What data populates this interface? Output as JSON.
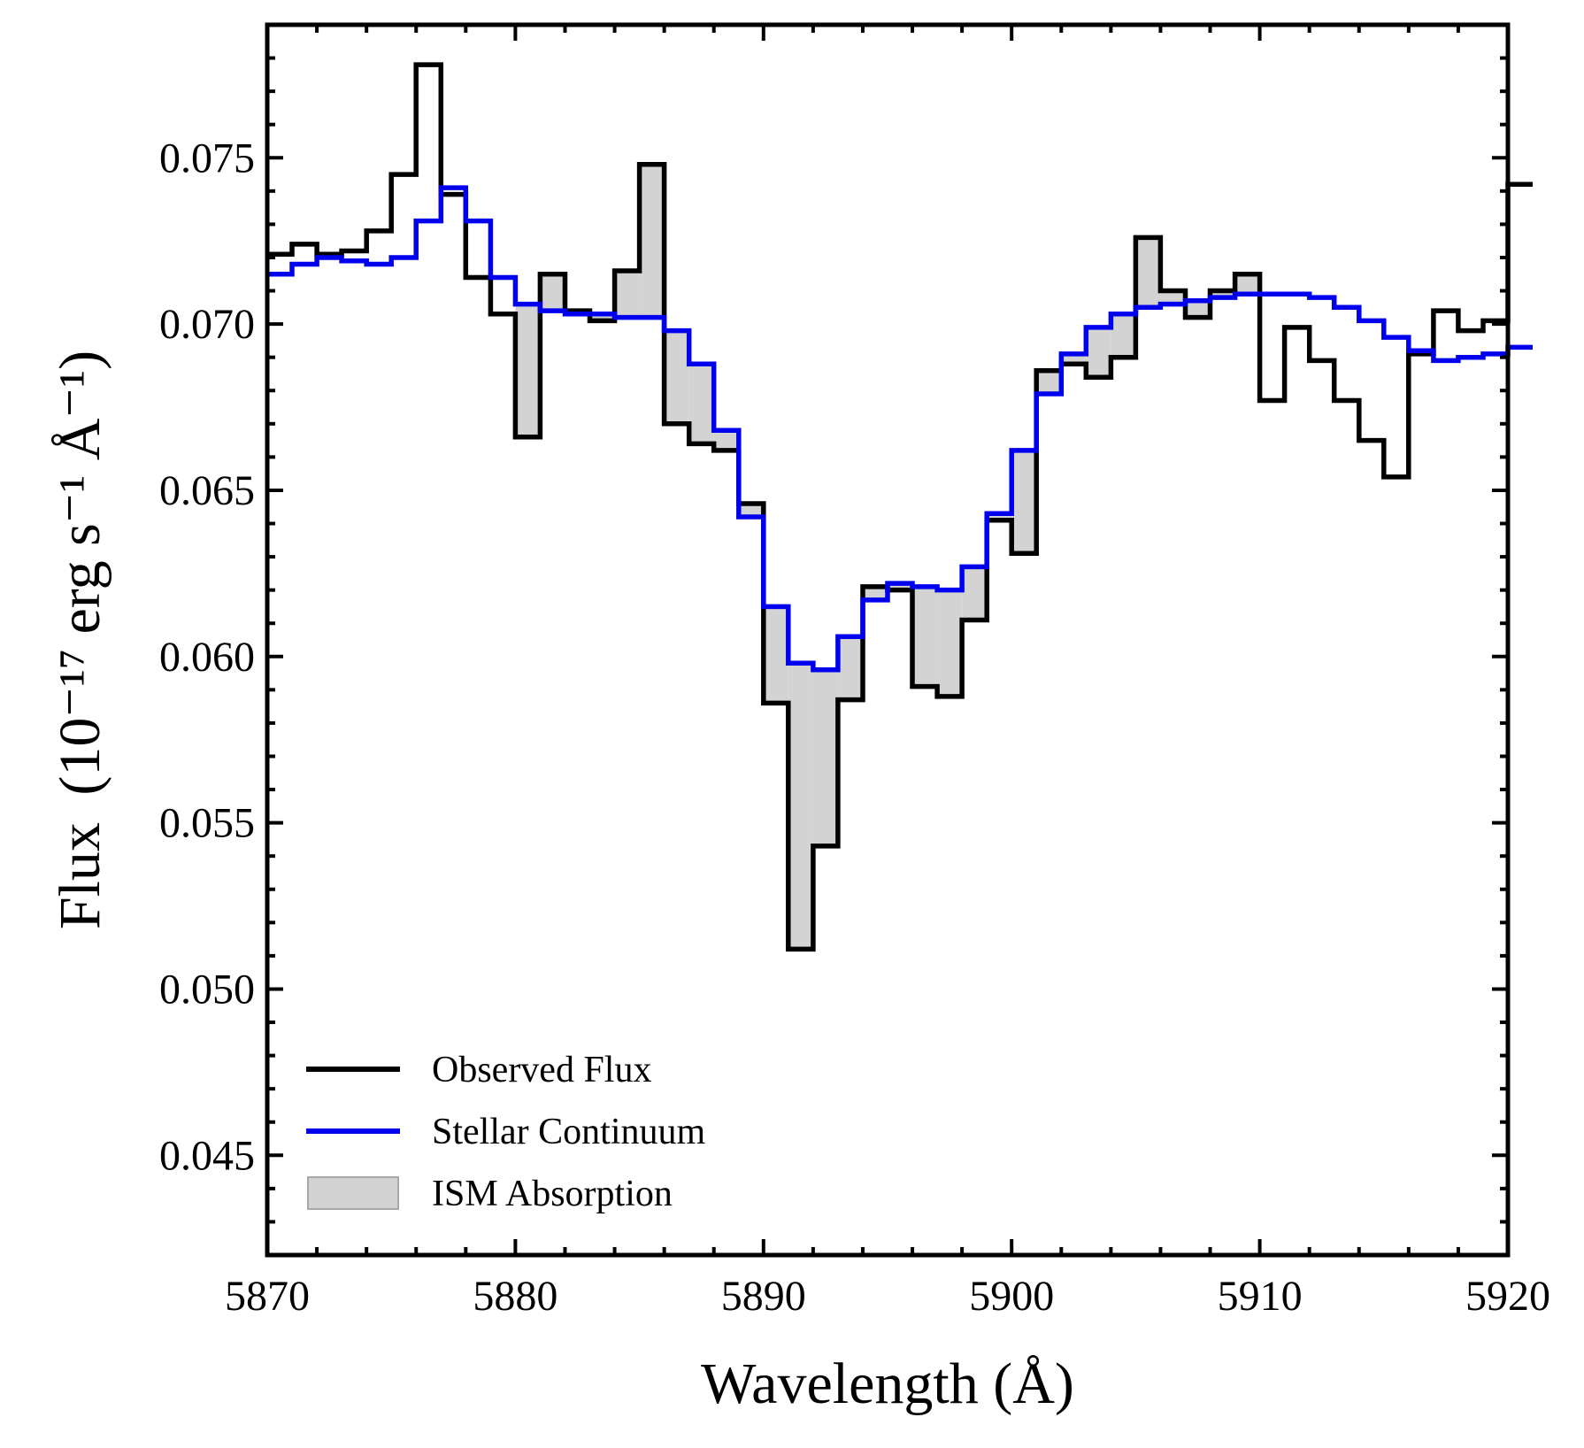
{
  "chart_data": {
    "type": "line",
    "title": "",
    "xlabel": "Wavelength (Å)",
    "ylabel_main": "Flux",
    "ylabel_units": "(10⁻¹⁷ erg s⁻¹ Å⁻¹)",
    "xlim": [
      5870,
      5920
    ],
    "ylim": [
      0.042,
      0.079
    ],
    "xticks": [
      5870,
      5880,
      5890,
      5900,
      5910,
      5920
    ],
    "xtick_labels": [
      "5870",
      "5880",
      "5890",
      "5900",
      "5910",
      "5920"
    ],
    "yticks": [
      0.045,
      0.05,
      0.055,
      0.06,
      0.065,
      0.07,
      0.075
    ],
    "ytick_labels": [
      "0.045",
      "0.050",
      "0.055",
      "0.060",
      "0.065",
      "0.070",
      "0.075"
    ],
    "grid": false,
    "legend_position": "bottom-left",
    "step_start": 5870,
    "step_width": 1.0,
    "series": [
      {
        "name": "Observed Flux",
        "color": "#000000",
        "values": [
          0.0721,
          0.0724,
          0.0721,
          0.0722,
          0.0728,
          0.0745,
          0.0778,
          0.0739,
          0.0714,
          0.0703,
          0.0666,
          0.0715,
          0.0704,
          0.0701,
          0.0716,
          0.0748,
          0.067,
          0.0664,
          0.0662,
          0.0646,
          0.0586,
          0.0512,
          0.0543,
          0.0587,
          0.0621,
          0.062,
          0.0591,
          0.0588,
          0.0611,
          0.0641,
          0.0631,
          0.0686,
          0.0688,
          0.0684,
          0.069,
          0.0726,
          0.071,
          0.0702,
          0.071,
          0.0715,
          0.0677,
          0.0699,
          0.0689,
          0.0677,
          0.0665,
          0.0654,
          0.0691,
          0.0704,
          0.0698,
          0.0701,
          0.0742
        ]
      },
      {
        "name": "Stellar Continuum",
        "color": "#0000ee",
        "values": [
          0.0715,
          0.0718,
          0.072,
          0.0719,
          0.0718,
          0.072,
          0.0731,
          0.0741,
          0.0731,
          0.0714,
          0.0706,
          0.0704,
          0.0703,
          0.0703,
          0.0702,
          0.0702,
          0.0698,
          0.0688,
          0.0668,
          0.0642,
          0.0615,
          0.0598,
          0.0596,
          0.0606,
          0.0617,
          0.0622,
          0.0621,
          0.062,
          0.0627,
          0.0643,
          0.0662,
          0.0679,
          0.0691,
          0.0699,
          0.0703,
          0.0705,
          0.0706,
          0.0707,
          0.0708,
          0.0709,
          0.0709,
          0.0709,
          0.0708,
          0.0705,
          0.0701,
          0.0696,
          0.0692,
          0.0689,
          0.069,
          0.0691,
          0.0693
        ]
      }
    ],
    "fill": {
      "name": "ISM Absorption",
      "color": "#d3d3d3",
      "between": [
        "Observed Flux",
        "Stellar Continuum"
      ],
      "x_range": [
        5880,
        5910
      ]
    },
    "legend": [
      {
        "label": "Observed Flux",
        "kind": "line",
        "color": "#000000"
      },
      {
        "label": "Stellar Continuum",
        "kind": "line",
        "color": "#0000ee"
      },
      {
        "label": "ISM Absorption",
        "kind": "patch",
        "color": "#d3d3d3"
      }
    ]
  }
}
